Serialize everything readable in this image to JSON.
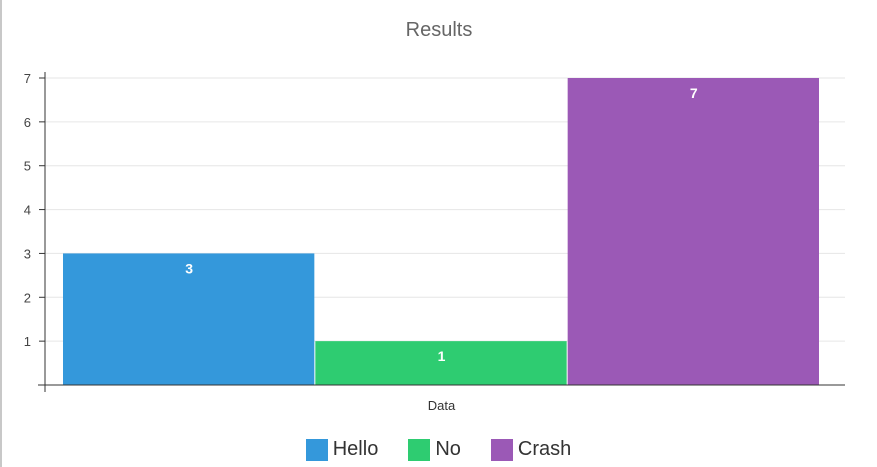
{
  "chart_data": {
    "type": "bar",
    "title": "Results",
    "categories": [
      "Data"
    ],
    "xlabel": "",
    "ylabel": "",
    "ylim": [
      0,
      7
    ],
    "yticks": [
      1,
      2,
      3,
      4,
      5,
      6,
      7
    ],
    "grid": true,
    "legend_position": "bottom",
    "series": [
      {
        "name": "Hello",
        "values": [
          3
        ],
        "color": "#3498db"
      },
      {
        "name": "No",
        "values": [
          1
        ],
        "color": "#2ecc71"
      },
      {
        "name": "Crash",
        "values": [
          7
        ],
        "color": "#9b59b6"
      }
    ]
  }
}
